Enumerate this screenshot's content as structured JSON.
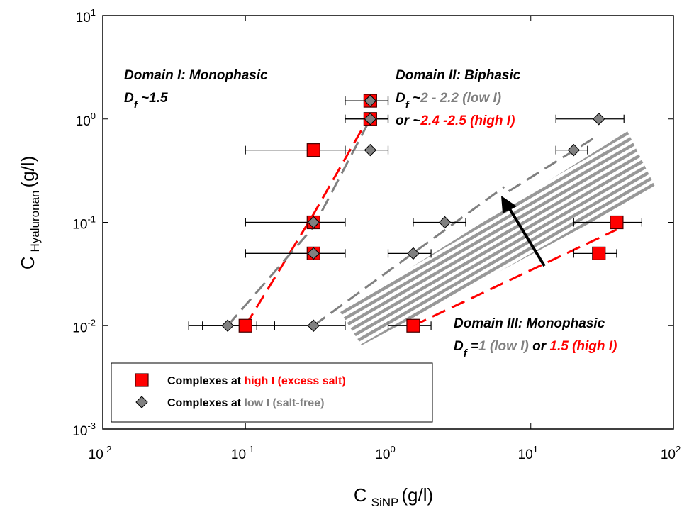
{
  "chart_data": {
    "type": "scatter",
    "x_label": {
      "main": "C",
      "sub": "SiNP",
      "unit": "(g/l)"
    },
    "y_label": {
      "main": "C",
      "sub": "Hyaluronan",
      "unit": "(g/l)"
    },
    "x_log": true,
    "y_log": true,
    "xlim": [
      0.01,
      100
    ],
    "ylim": [
      0.001,
      10
    ],
    "xticks": [
      {
        "value": 0.01,
        "label": "10",
        "exponent": "-2"
      },
      {
        "value": 0.1,
        "label": "10",
        "exponent": "-1"
      },
      {
        "value": 1,
        "label": "10",
        "exponent": "0"
      },
      {
        "value": 10,
        "label": "10",
        "exponent": "1"
      },
      {
        "value": 100,
        "label": "10",
        "exponent": "2"
      }
    ],
    "yticks": [
      {
        "value": 0.001,
        "label": "10",
        "exponent": "-3"
      },
      {
        "value": 0.01,
        "label": "10",
        "exponent": "-2"
      },
      {
        "value": 0.1,
        "label": "10",
        "exponent": "-1"
      },
      {
        "value": 1,
        "label": "10",
        "exponent": "0"
      },
      {
        "value": 10,
        "label": "10",
        "exponent": "1"
      }
    ],
    "series": [
      {
        "name_parts": [
          "Complexes at ",
          "high I (excess salt)"
        ],
        "marker": "square",
        "color": "#ff0000",
        "label_color": "#ff0000",
        "x": [
          0.1,
          0.3,
          0.3,
          0.3,
          0.75,
          0.75,
          1.5,
          40,
          30
        ],
        "y": [
          0.01,
          0.5,
          0.1,
          0.05,
          1.5,
          1.0,
          0.01,
          0.1,
          0.05
        ],
        "x_low": [
          0.05,
          0.1,
          0.1,
          0.1,
          0.5,
          0.5,
          1.0,
          20,
          20
        ],
        "x_high": [
          0.16,
          0.5,
          0.5,
          0.5,
          1.0,
          1.0,
          2.0,
          60,
          40
        ]
      },
      {
        "name_parts": [
          "Complexes at ",
          "low I (salt-free)"
        ],
        "marker": "diamond",
        "color": "#808080",
        "label_color": "#808080",
        "x": [
          0.075,
          0.3,
          0.3,
          0.3,
          0.75,
          0.75,
          0.75,
          1.5,
          2.5,
          20,
          30
        ],
        "y": [
          0.01,
          0.01,
          0.1,
          0.05,
          0.5,
          1.5,
          1.0,
          0.05,
          0.1,
          0.5,
          1.0
        ],
        "x_low": [
          0.04,
          0.16,
          0.1,
          0.1,
          0.5,
          0.5,
          0.5,
          1.0,
          1.5,
          15,
          15
        ],
        "x_high": [
          0.12,
          0.5,
          0.5,
          0.5,
          1.0,
          1.0,
          1.0,
          2.0,
          3.5,
          25,
          45
        ]
      }
    ],
    "guides": [
      {
        "color": "#ff0000",
        "x": [
          0.1,
          0.3,
          0.75
        ],
        "y": [
          0.01,
          0.12,
          1.1
        ]
      },
      {
        "color": "#808080",
        "x": [
          0.075,
          0.3,
          0.75
        ],
        "y": [
          0.01,
          0.09,
          1.0
        ]
      },
      {
        "color": "#ff0000",
        "x": [
          1.5,
          40
        ],
        "y": [
          0.01,
          0.085
        ]
      },
      {
        "color": "#808080",
        "x": [
          0.3,
          6.5
        ],
        "y": [
          0.01,
          0.22
        ]
      },
      {
        "color": "#808080",
        "x": [
          7,
          30
        ],
        "y": [
          0.2,
          0.7
        ]
      }
    ],
    "annotations": [
      {
        "lines": [
          [
            {
              "text": "Domain I: Monophasic",
              "color": "#000000"
            }
          ],
          [
            {
              "text": "D",
              "color": "#000000"
            },
            {
              "text": "f",
              "color": "#000000",
              "sub": true
            },
            {
              "text": " ~1.5",
              "color": "#000000"
            }
          ]
        ]
      },
      {
        "lines": [
          [
            {
              "text": "Domain II: Biphasic",
              "color": "#000000"
            }
          ],
          [
            {
              "text": "D",
              "color": "#000000"
            },
            {
              "text": "f",
              "color": "#000000",
              "sub": true
            },
            {
              "text": " ~",
              "color": "#000000"
            },
            {
              "text": "2 - 2.2 (low I)",
              "color": "#808080"
            }
          ],
          [
            {
              "text": "or ~",
              "color": "#000000"
            },
            {
              "text": "2.4 -2.5 (high I)",
              "color": "#ff0000"
            }
          ]
        ]
      },
      {
        "lines": [
          [
            {
              "text": "Domain III: Monophasic",
              "color": "#000000"
            }
          ],
          [
            {
              "text": "D",
              "color": "#000000"
            },
            {
              "text": "f",
              "color": "#000000",
              "sub": true
            },
            {
              "text": " =",
              "color": "#000000"
            },
            {
              "text": "1 (low I)",
              "color": "#808080"
            },
            {
              "text": " or ",
              "color": "#000000"
            },
            {
              "text": "1.5 (high I)",
              "color": "#ff0000"
            }
          ]
        ]
      }
    ]
  }
}
